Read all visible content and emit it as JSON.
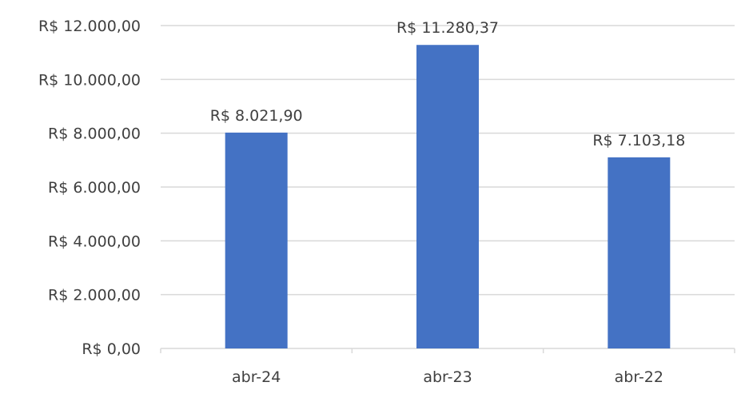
{
  "chart_data": {
    "type": "bar",
    "title": "",
    "xlabel": "",
    "ylabel": "",
    "categories": [
      "abr-24",
      "abr-23",
      "abr-22"
    ],
    "values": [
      8021.9,
      11280.37,
      7103.18
    ],
    "data_labels": [
      "R$ 8.021,90",
      "R$ 11.280,37",
      "R$ 7.103,18"
    ],
    "ylim": [
      0,
      12000
    ],
    "yticks": [
      0,
      2000,
      4000,
      6000,
      8000,
      10000,
      12000
    ],
    "ytick_labels": [
      "R$ 0,00",
      "R$ 2.000,00",
      "R$ 4.000,00",
      "R$ 6.000,00",
      "R$ 8.000,00",
      "R$ 10.000,00",
      "R$ 12.000,00"
    ],
    "grid": true,
    "legend": "none",
    "bar_color": "#4472c4"
  }
}
